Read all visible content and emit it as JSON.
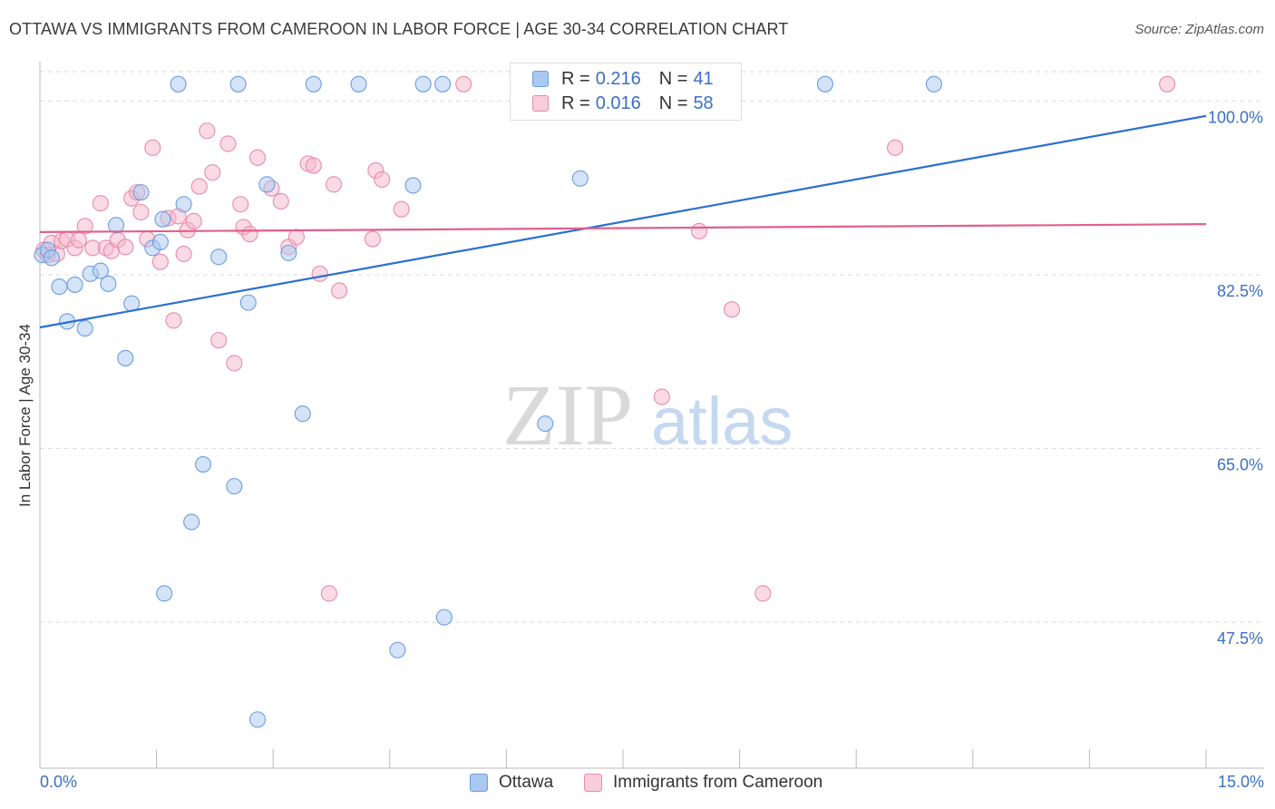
{
  "title": "OTTAWA VS IMMIGRANTS FROM CAMEROON IN LABOR FORCE | AGE 30-34 CORRELATION CHART",
  "source": "Source: ZipAtlas.com",
  "watermark": {
    "zip": "ZIP",
    "atlas": "atlas"
  },
  "legend_top": {
    "rows": [
      {
        "r_label": "R =",
        "r_value": "0.216",
        "n_label": "N =",
        "n_value": "41"
      },
      {
        "r_label": "R =",
        "r_value": "0.016",
        "n_label": "N =",
        "n_value": "58"
      }
    ]
  },
  "legend_bottom": {
    "series1": "Ottawa",
    "series2": "Immigrants from Cameroon"
  },
  "x_tick_left": "0.0%",
  "x_tick_right": "15.0%",
  "colors": {
    "blue_fill": "#aac8f0",
    "blue_stroke": "#6a9ee0",
    "blue_line": "#2a6fd0",
    "pink_fill": "#f5b8cb",
    "pink_stroke": "#e98aa8",
    "pink_line": "#e0608a",
    "tick_text": "#3a6fc8",
    "grid": "#dedede"
  },
  "chart_data": {
    "type": "scatter",
    "title": "OTTAWA VS IMMIGRANTS FROM CAMEROON IN LABOR FORCE | AGE 30-34 CORRELATION CHART",
    "xlabel": "",
    "ylabel": "In Labor Force | Age 30-34",
    "xlim": [
      0,
      15
    ],
    "ylim": [
      32.8,
      103.6
    ],
    "y_ticks": [
      {
        "value": 100.0,
        "label": "100.0%"
      },
      {
        "value": 82.5,
        "label": "82.5%"
      },
      {
        "value": 65.0,
        "label": "65.0%"
      },
      {
        "value": 47.5,
        "label": "47.5%"
      }
    ],
    "series": [
      {
        "name": "Ottawa",
        "points": [
          [
            0.03,
            84.5
          ],
          [
            0.1,
            85.0
          ],
          [
            0.15,
            84.2
          ],
          [
            0.25,
            81.3
          ],
          [
            0.35,
            77.8
          ],
          [
            0.45,
            81.5
          ],
          [
            0.58,
            77.1
          ],
          [
            0.65,
            82.6
          ],
          [
            0.78,
            82.9
          ],
          [
            0.88,
            81.6
          ],
          [
            0.98,
            87.5
          ],
          [
            1.1,
            74.1
          ],
          [
            1.18,
            79.6
          ],
          [
            1.3,
            90.8
          ],
          [
            1.45,
            85.2
          ],
          [
            1.55,
            85.8
          ],
          [
            1.58,
            88.1
          ],
          [
            1.6,
            50.4
          ],
          [
            1.78,
            101.7
          ],
          [
            1.85,
            89.6
          ],
          [
            1.95,
            57.6
          ],
          [
            2.1,
            63.4
          ],
          [
            2.3,
            84.3
          ],
          [
            2.5,
            61.2
          ],
          [
            2.55,
            101.7
          ],
          [
            2.68,
            79.7
          ],
          [
            2.8,
            37.7
          ],
          [
            2.92,
            91.6
          ],
          [
            3.2,
            84.7
          ],
          [
            3.38,
            68.5
          ],
          [
            3.52,
            101.7
          ],
          [
            4.1,
            101.7
          ],
          [
            4.6,
            44.7
          ],
          [
            4.8,
            91.5
          ],
          [
            4.93,
            101.7
          ],
          [
            5.18,
            101.7
          ],
          [
            5.2,
            48.0
          ],
          [
            6.5,
            67.5
          ],
          [
            6.95,
            92.2
          ],
          [
            10.1,
            101.7
          ],
          [
            11.5,
            101.7
          ]
        ]
      },
      {
        "name": "Immigrants from Cameroon",
        "points": [
          [
            0.05,
            85.0
          ],
          [
            0.1,
            84.5
          ],
          [
            0.15,
            85.7
          ],
          [
            0.22,
            84.6
          ],
          [
            0.28,
            85.9
          ],
          [
            0.35,
            86.1
          ],
          [
            0.45,
            85.2
          ],
          [
            0.5,
            86.0
          ],
          [
            0.58,
            87.4
          ],
          [
            0.68,
            85.2
          ],
          [
            0.78,
            89.7
          ],
          [
            0.85,
            85.2
          ],
          [
            0.92,
            84.9
          ],
          [
            1.0,
            86.0
          ],
          [
            1.1,
            85.3
          ],
          [
            1.18,
            90.2
          ],
          [
            1.25,
            90.8
          ],
          [
            1.3,
            88.8
          ],
          [
            1.38,
            86.1
          ],
          [
            1.45,
            95.3
          ],
          [
            1.55,
            83.8
          ],
          [
            1.65,
            88.2
          ],
          [
            1.72,
            77.9
          ],
          [
            1.78,
            88.4
          ],
          [
            1.85,
            84.6
          ],
          [
            1.9,
            87.0
          ],
          [
            1.98,
            87.9
          ],
          [
            2.05,
            91.4
          ],
          [
            2.15,
            97.0
          ],
          [
            2.22,
            92.8
          ],
          [
            2.3,
            75.9
          ],
          [
            2.42,
            95.7
          ],
          [
            2.5,
            73.6
          ],
          [
            2.58,
            89.6
          ],
          [
            2.62,
            87.3
          ],
          [
            2.7,
            86.6
          ],
          [
            2.8,
            94.3
          ],
          [
            2.98,
            91.2
          ],
          [
            3.1,
            89.9
          ],
          [
            3.2,
            85.3
          ],
          [
            3.3,
            86.3
          ],
          [
            3.45,
            93.7
          ],
          [
            3.52,
            93.5
          ],
          [
            3.6,
            82.6
          ],
          [
            3.72,
            50.4
          ],
          [
            3.78,
            91.6
          ],
          [
            3.85,
            80.9
          ],
          [
            4.28,
            86.1
          ],
          [
            4.32,
            93.0
          ],
          [
            4.4,
            92.1
          ],
          [
            4.65,
            89.1
          ],
          [
            5.45,
            101.7
          ],
          [
            8.0,
            70.2
          ],
          [
            8.48,
            86.9
          ],
          [
            8.9,
            79.0
          ],
          [
            9.3,
            50.4
          ],
          [
            11.0,
            95.3
          ],
          [
            14.5,
            101.7
          ]
        ]
      }
    ],
    "trend_lines": [
      {
        "series": "Ottawa",
        "x": [
          0,
          15
        ],
        "y": [
          77.2,
          98.5
        ]
      },
      {
        "series": "Immigrants from Cameroon",
        "x": [
          0,
          15
        ],
        "y": [
          86.8,
          87.6
        ]
      }
    ]
  }
}
